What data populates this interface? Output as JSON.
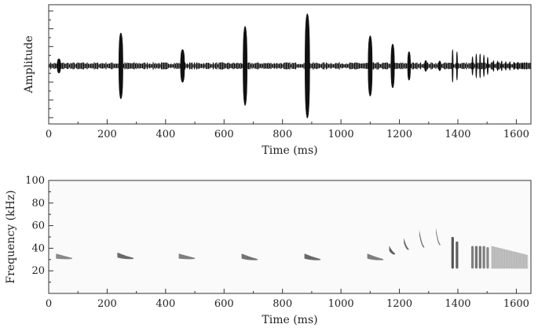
{
  "chart_data": [
    {
      "type": "line",
      "subtype": "waveform",
      "title": "",
      "xlabel": "Time (ms)",
      "ylabel": "Amplitude",
      "xlim": [
        0,
        1650
      ],
      "xticks": [
        0,
        200,
        400,
        600,
        800,
        1000,
        1200,
        1400,
        1600
      ],
      "ylim": [
        -1,
        1
      ],
      "y_tick_labels_shown": false,
      "baseline_noise_amplitude": 0.06,
      "colors": {
        "trace": "#111111",
        "axes": "#333333"
      },
      "pulses": [
        {
          "t": 35,
          "duration": 12,
          "amplitude": 0.13
        },
        {
          "t": 247,
          "duration": 14,
          "amplitude": 0.6
        },
        {
          "t": 458,
          "duration": 14,
          "amplitude": 0.3
        },
        {
          "t": 672,
          "duration": 14,
          "amplitude": 0.72
        },
        {
          "t": 885,
          "duration": 16,
          "amplitude": 0.95
        },
        {
          "t": 1100,
          "duration": 14,
          "amplitude": 0.55
        },
        {
          "t": 1177,
          "duration": 12,
          "amplitude": 0.4
        },
        {
          "t": 1233,
          "duration": 10,
          "amplitude": 0.26
        },
        {
          "t": 1290,
          "duration": 8,
          "amplitude": 0.1
        },
        {
          "t": 1338,
          "duration": 8,
          "amplitude": 0.09
        },
        {
          "t": 1382,
          "duration": 4,
          "amplitude": 0.3
        },
        {
          "t": 1397,
          "duration": 4,
          "amplitude": 0.26
        },
        {
          "t": 1450,
          "duration": 3,
          "amplitude": 0.17
        },
        {
          "t": 1463,
          "duration": 3,
          "amplitude": 0.22
        },
        {
          "t": 1476,
          "duration": 3,
          "amplitude": 0.22
        },
        {
          "t": 1489,
          "duration": 3,
          "amplitude": 0.2
        },
        {
          "t": 1502,
          "duration": 3,
          "amplitude": 0.16
        },
        {
          "t": 1522,
          "duration": 3,
          "amplitude": 0.1
        },
        {
          "t": 1536,
          "duration": 3,
          "amplitude": 0.09
        },
        {
          "t": 1550,
          "duration": 3,
          "amplitude": 0.09
        },
        {
          "t": 1564,
          "duration": 3,
          "amplitude": 0.08
        },
        {
          "t": 1578,
          "duration": 3,
          "amplitude": 0.08
        },
        {
          "t": 1592,
          "duration": 3,
          "amplitude": 0.07
        },
        {
          "t": 1606,
          "duration": 3,
          "amplitude": 0.07
        },
        {
          "t": 1620,
          "duration": 3,
          "amplitude": 0.06
        }
      ]
    },
    {
      "type": "heatmap",
      "subtype": "spectrogram",
      "title": "",
      "xlabel": "Time (ms)",
      "ylabel": "Frequency (kHz)",
      "xlim": [
        0,
        1650
      ],
      "xticks": [
        0,
        200,
        400,
        600,
        800,
        1000,
        1200,
        1400,
        1600
      ],
      "ylim": [
        0,
        100
      ],
      "yticks": [
        20,
        40,
        60,
        80,
        100
      ],
      "colors": {
        "ink": "#2b2b2b",
        "background": "#fafafa",
        "axes": "#333333"
      },
      "calls": [
        {
          "t_start": 25,
          "t_end": 80,
          "f_start": 33,
          "f_end": 31,
          "intensity": 0.55
        },
        {
          "t_start": 235,
          "t_end": 290,
          "f_start": 34,
          "f_end": 31,
          "intensity": 0.7
        },
        {
          "t_start": 445,
          "t_end": 500,
          "f_start": 33,
          "f_end": 31,
          "intensity": 0.6
        },
        {
          "t_start": 660,
          "t_end": 715,
          "f_start": 33,
          "f_end": 30,
          "intensity": 0.65
        },
        {
          "t_start": 875,
          "t_end": 930,
          "f_start": 33,
          "f_end": 30,
          "intensity": 0.7
        },
        {
          "t_start": 1090,
          "t_end": 1145,
          "f_start": 33,
          "f_end": 30,
          "intensity": 0.6
        },
        {
          "t_start": 1165,
          "t_end": 1185,
          "f_start": 40,
          "f_end": 35,
          "intensity": 0.75
        },
        {
          "t_start": 1215,
          "t_end": 1232,
          "f_start": 47,
          "f_end": 39,
          "intensity": 0.7
        },
        {
          "t_start": 1268,
          "t_end": 1285,
          "f_start": 54,
          "f_end": 41,
          "intensity": 0.65
        },
        {
          "t_start": 1325,
          "t_end": 1340,
          "f_start": 56,
          "f_end": 43,
          "intensity": 0.6
        }
      ],
      "clicks": [
        {
          "t": 1382,
          "f_low": 22,
          "f_high": 50,
          "intensity": 0.8
        },
        {
          "t": 1397,
          "f_low": 22,
          "f_high": 46,
          "intensity": 0.75
        },
        {
          "t": 1450,
          "f_low": 22,
          "f_high": 42,
          "intensity": 0.6
        },
        {
          "t": 1463,
          "f_low": 22,
          "f_high": 42,
          "intensity": 0.65
        },
        {
          "t": 1476,
          "f_low": 22,
          "f_high": 42,
          "intensity": 0.65
        },
        {
          "t": 1489,
          "f_low": 22,
          "f_high": 42,
          "intensity": 0.6
        },
        {
          "t": 1502,
          "f_low": 22,
          "f_high": 41,
          "intensity": 0.55
        }
      ],
      "buzz": {
        "t_start": 1515,
        "t_end": 1640,
        "f_low_start": 22,
        "f_high_start": 42,
        "f_low_end": 22,
        "f_high_end": 34,
        "intensity": 0.22
      }
    }
  ]
}
